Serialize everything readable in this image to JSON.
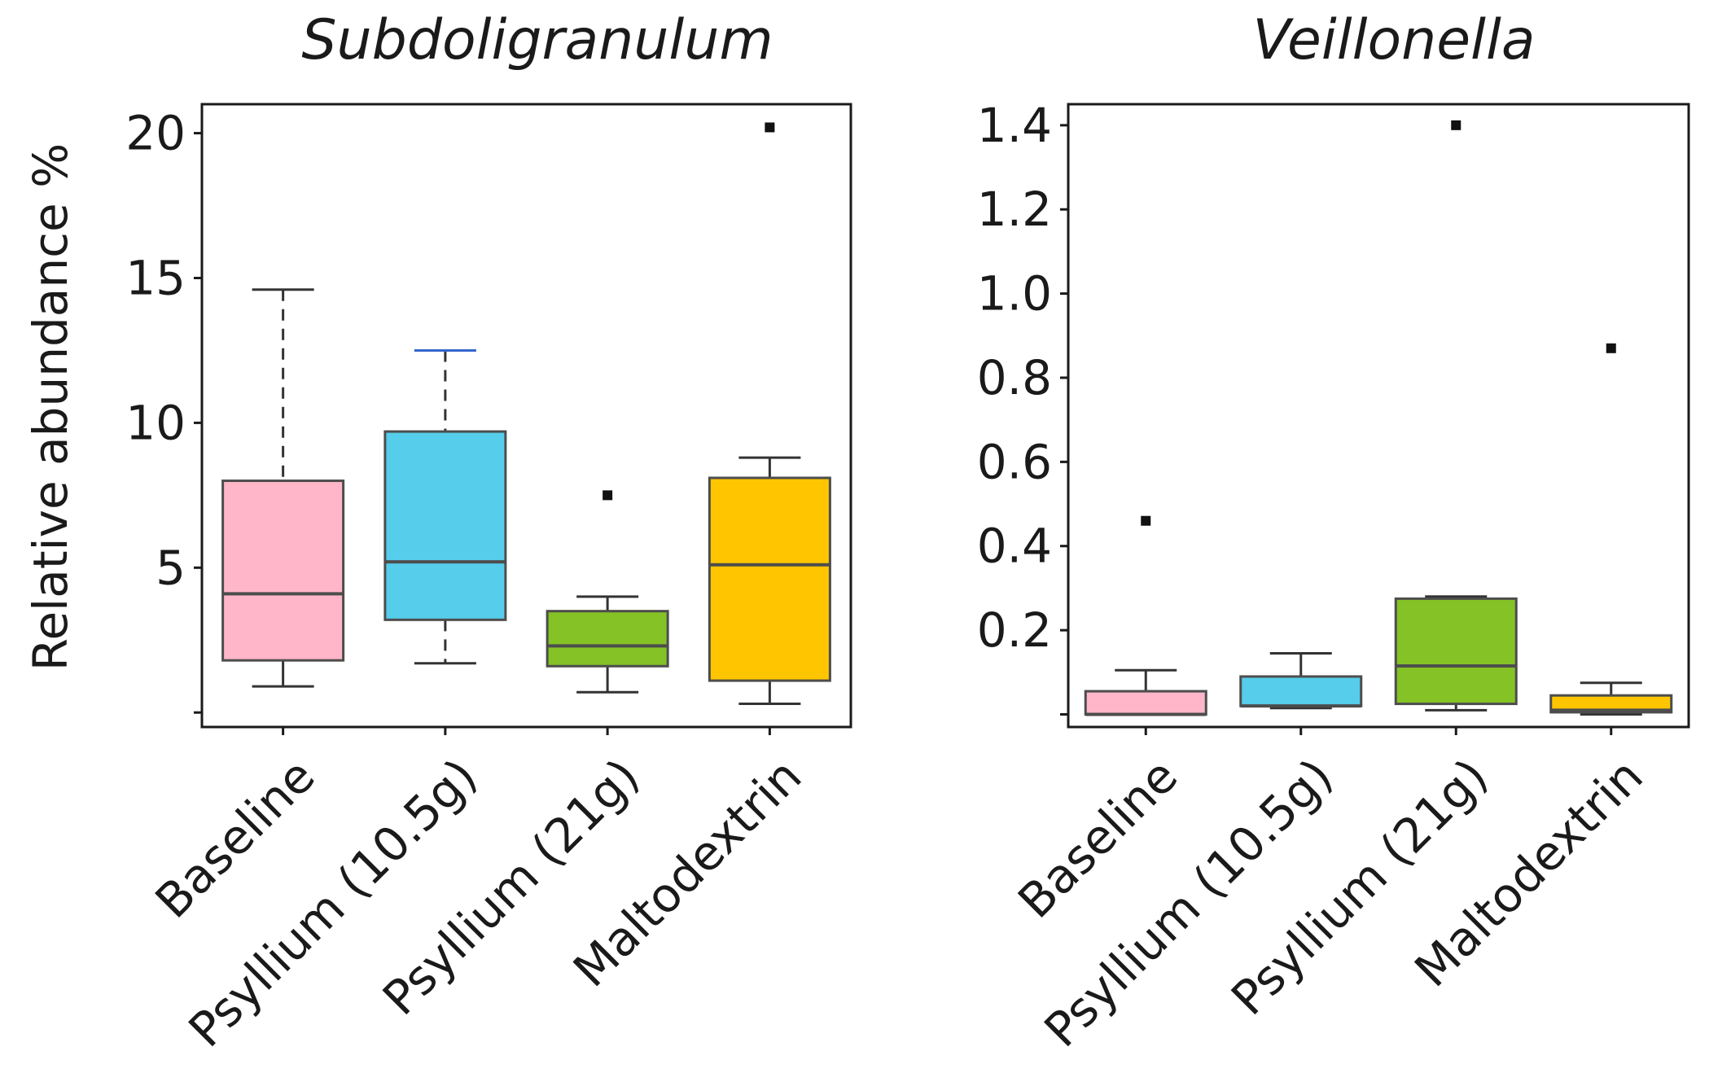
{
  "chart_data": [
    {
      "type": "box",
      "title": "Subdoligranulum",
      "ylabel": "Relative abundance %",
      "xlabel": "",
      "ylim": [
        -0.5,
        21
      ],
      "yticks": [
        0,
        5,
        10,
        15,
        20
      ],
      "ytick_labels": [
        "",
        "5",
        "10",
        "15",
        "20"
      ],
      "categories": [
        "Baseline",
        "Psyllium (10.5g)",
        "Psyllium (21g)",
        "Maltodextrin"
      ],
      "series": [
        {
          "name": "Baseline",
          "color": "#FFB6C8",
          "whisker_color": "#333333",
          "min": 0.9,
          "q1": 1.8,
          "median": 4.1,
          "q3": 8.0,
          "max": 14.6,
          "outliers": []
        },
        {
          "name": "Psyllium (10.5g)",
          "color": "#55CDEB",
          "whisker_color": "#3366cc",
          "min": 1.7,
          "q1": 3.2,
          "median": 5.2,
          "q3": 9.7,
          "max": 12.5,
          "outliers": []
        },
        {
          "name": "Psyllium (21g)",
          "color": "#84C225",
          "whisker_color": "#333333",
          "min": 0.7,
          "q1": 1.6,
          "median": 2.3,
          "q3": 3.5,
          "max": 4.0,
          "outliers": [
            7.5
          ]
        },
        {
          "name": "Maltodextrin",
          "color": "#FFC600",
          "whisker_color": "#333333",
          "min": 0.3,
          "q1": 1.1,
          "median": 5.1,
          "q3": 8.1,
          "max": 8.8,
          "outliers": [
            20.2
          ]
        }
      ]
    },
    {
      "type": "box",
      "title": "Veillonella",
      "ylabel": "",
      "xlabel": "",
      "ylim": [
        -0.03,
        1.45
      ],
      "yticks": [
        0,
        0.2,
        0.4,
        0.6,
        0.8,
        1.0,
        1.2,
        1.4
      ],
      "ytick_labels": [
        "",
        "0.2",
        "0.4",
        "0.6",
        "0.8",
        "1.0",
        "1.2",
        "1.4"
      ],
      "categories": [
        "Baseline",
        "Psyllium (10.5g)",
        "Psyllium (21g)",
        "Maltodextrin"
      ],
      "series": [
        {
          "name": "Baseline",
          "color": "#FFB6C8",
          "whisker_color": "#333333",
          "min": 0.0,
          "q1": 0.0,
          "median": 0.0,
          "q3": 0.055,
          "max": 0.105,
          "outliers": [
            0.46
          ]
        },
        {
          "name": "Psyllium (10.5g)",
          "color": "#55CDEB",
          "whisker_color": "#333333",
          "min": 0.015,
          "q1": 0.02,
          "median": 0.02,
          "q3": 0.09,
          "max": 0.145,
          "outliers": []
        },
        {
          "name": "Psyllium (21g)",
          "color": "#84C225",
          "whisker_color": "#333333",
          "min": 0.01,
          "q1": 0.025,
          "median": 0.115,
          "q3": 0.275,
          "max": 0.28,
          "outliers": [
            1.4
          ]
        },
        {
          "name": "Maltodextrin",
          "color": "#FFC600",
          "whisker_color": "#333333",
          "min": 0.0,
          "q1": 0.005,
          "median": 0.01,
          "q3": 0.045,
          "max": 0.075,
          "outliers": [
            0.87
          ]
        }
      ]
    }
  ]
}
